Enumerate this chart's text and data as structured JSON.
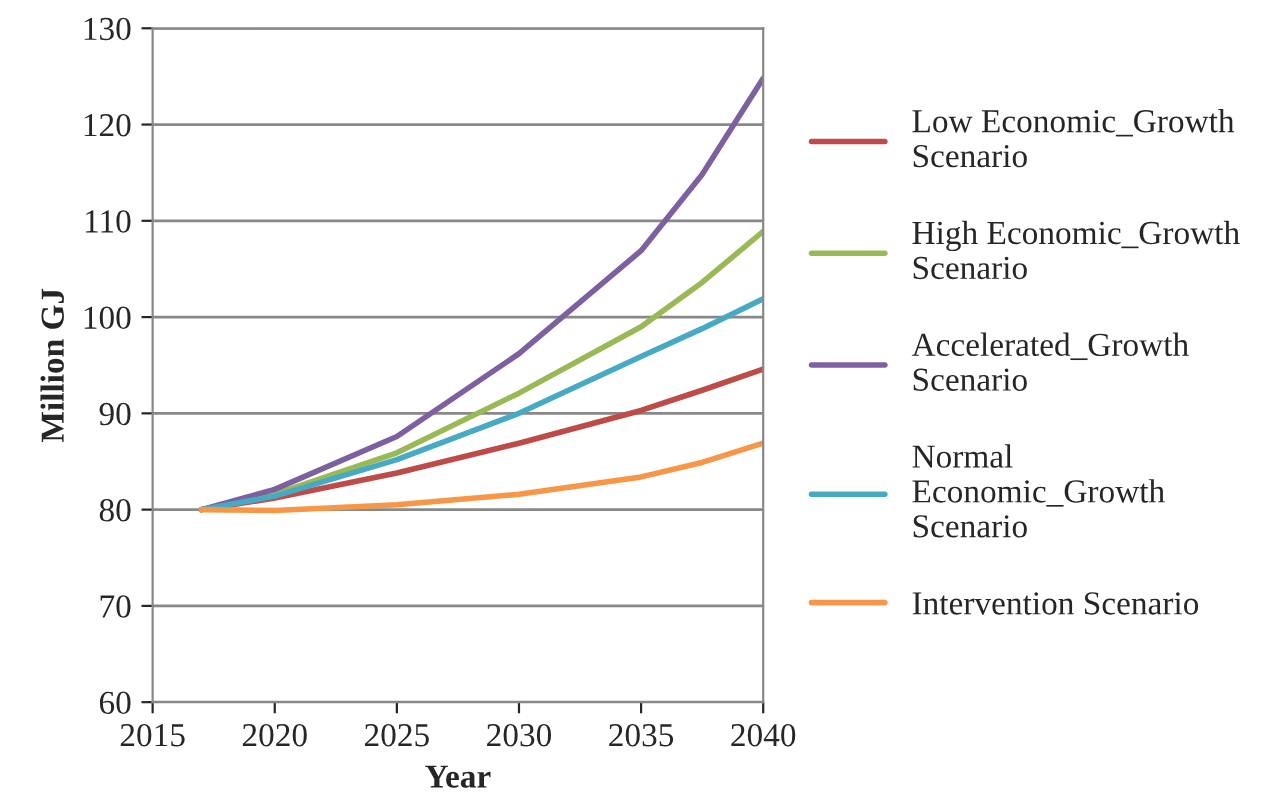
{
  "chart_data": {
    "type": "line",
    "xlabel": "Year",
    "ylabel": "Million GJ",
    "x": [
      2017,
      2020,
      2025,
      2030,
      2035,
      2037.5,
      2040
    ],
    "series": [
      {
        "name": "Low Economic_Growth\nScenario",
        "color": "#be4b48",
        "values": [
          80,
          81.2,
          83.8,
          86.9,
          90.3,
          92.4,
          94.6
        ]
      },
      {
        "name": "High Economic_Growth\nScenario",
        "color": "#98b954",
        "values": [
          80,
          81.6,
          85.9,
          92.1,
          99,
          103.6,
          108.9
        ]
      },
      {
        "name": "Accelerated_Growth\nScenario",
        "color": "#7d60a0",
        "values": [
          80,
          82.1,
          87.6,
          96.2,
          106.9,
          114.8,
          124.8
        ]
      },
      {
        "name": "Normal\nEconomic_Growth\nScenario",
        "color": "#46aac5",
        "values": [
          80,
          81.4,
          85.2,
          90,
          95.9,
          98.8,
          101.9
        ]
      },
      {
        "name": "Intervention Scenario",
        "color": "#f79646",
        "values": [
          80,
          79.9,
          80.5,
          81.6,
          83.4,
          84.9,
          86.9
        ]
      }
    ],
    "xlim": [
      2015,
      2040
    ],
    "xticks": [
      2015,
      2020,
      2025,
      2030,
      2035,
      2040
    ],
    "ylim": [
      60,
      130
    ],
    "yticks": [
      60,
      70,
      80,
      90,
      100,
      110,
      120,
      130
    ],
    "grid": "y",
    "legend": "right",
    "marker": "none",
    "line_style": "solid"
  }
}
